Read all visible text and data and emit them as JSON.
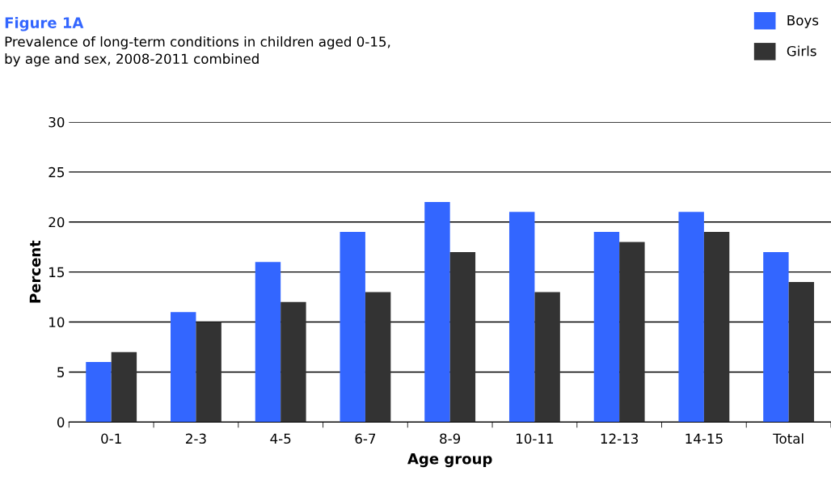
{
  "chart_data": {
    "type": "bar",
    "title": "Figure 1A",
    "subtitle": "Prevalence of long-term conditions in children aged 0-15,\nby age and sex, 2008-2011 combined",
    "xlabel": "Age group",
    "ylabel": "Percent",
    "categories": [
      "0-1",
      "2-3",
      "4-5",
      "6-7",
      "8-9",
      "10-11",
      "12-13",
      "14-15",
      "Total"
    ],
    "series": [
      {
        "name": "Boys",
        "color": "#3366ff",
        "values": [
          6,
          11,
          16,
          19,
          22,
          21,
          19,
          21,
          17
        ]
      },
      {
        "name": "Girls",
        "color": "#333333",
        "values": [
          7,
          10,
          12,
          13,
          17,
          13,
          18,
          19,
          14
        ]
      }
    ],
    "ylim": [
      0,
      30
    ],
    "yticks": [
      0,
      5,
      10,
      15,
      20,
      25,
      30
    ],
    "grid": "y",
    "legend": "top right"
  }
}
